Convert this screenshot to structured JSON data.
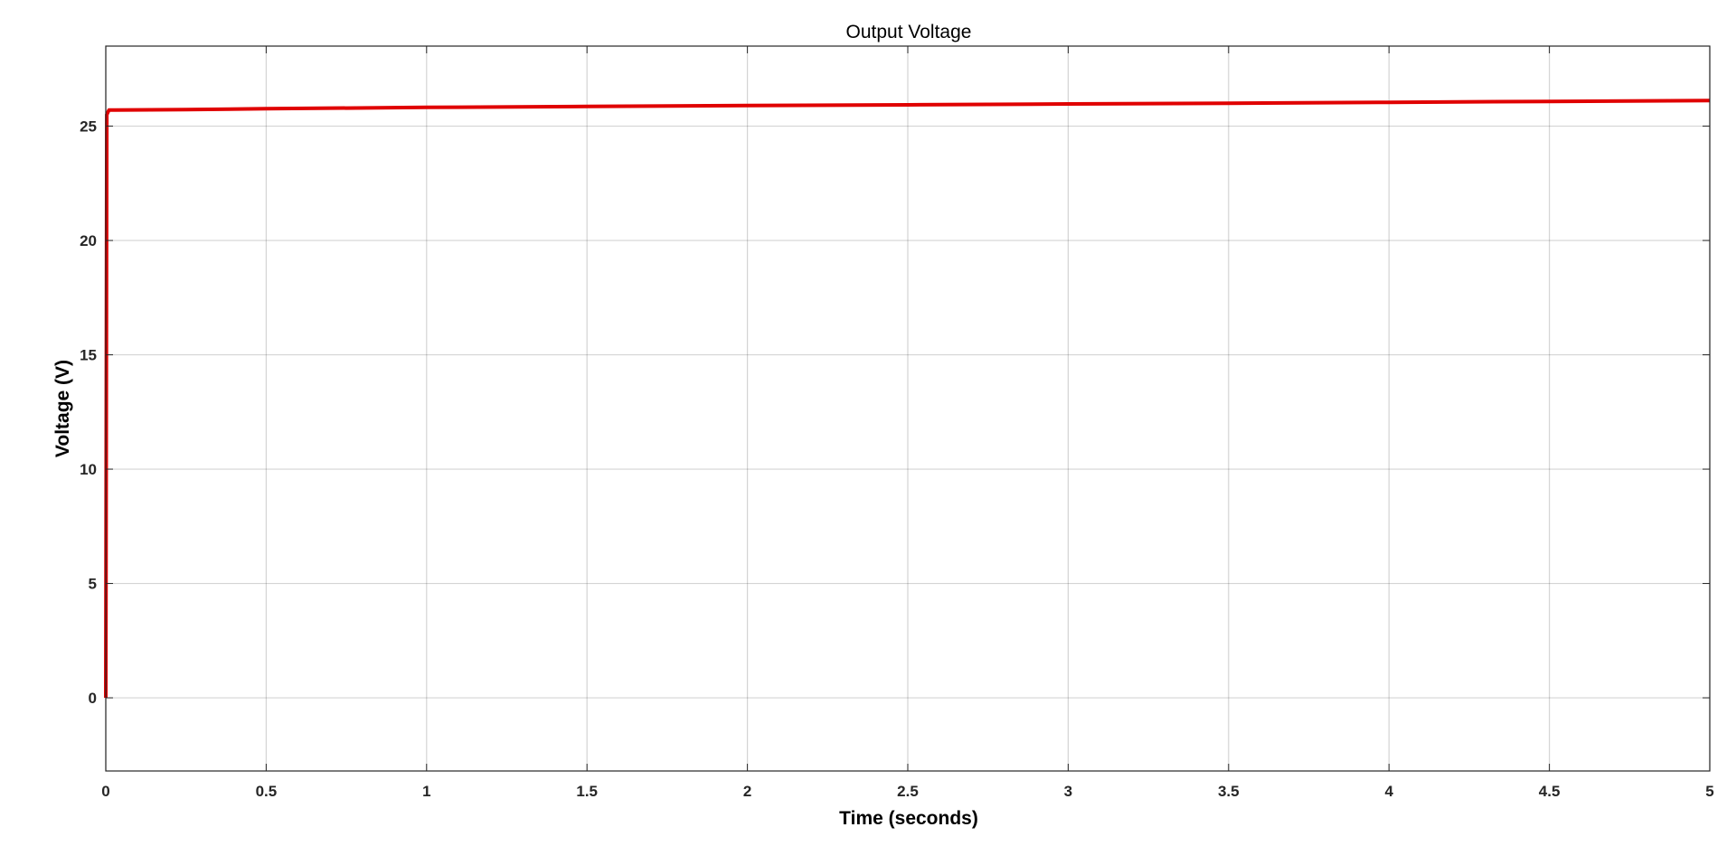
{
  "chart_data": {
    "type": "line",
    "title": "Output Voltage",
    "xlabel": "Time (seconds)",
    "ylabel": "Voltage (V)",
    "xlim": [
      0,
      5
    ],
    "ylim": [
      -3.2,
      28.5
    ],
    "x_ticks": [
      0,
      0.5,
      1,
      1.5,
      2,
      2.5,
      3,
      3.5,
      4,
      4.5,
      5
    ],
    "x_tick_labels": [
      "0",
      "0.5",
      "1",
      "1.5",
      "2",
      "2.5",
      "3",
      "3.5",
      "4",
      "4.5",
      "5"
    ],
    "y_ticks": [
      0,
      5,
      10,
      15,
      20,
      25
    ],
    "y_tick_labels": [
      "0",
      "5",
      "10",
      "15",
      "20",
      "25"
    ],
    "grid": true,
    "series": [
      {
        "color": "#e00000",
        "x": [
          0,
          0.003,
          0.01,
          0.25,
          0.5,
          1,
          1.5,
          2,
          2.5,
          3,
          3.5,
          4,
          4.5,
          5
        ],
        "y": [
          0,
          25.5,
          25.7,
          25.72,
          25.76,
          25.82,
          25.86,
          25.9,
          25.93,
          25.97,
          26.0,
          26.04,
          26.08,
          26.12
        ]
      }
    ]
  }
}
